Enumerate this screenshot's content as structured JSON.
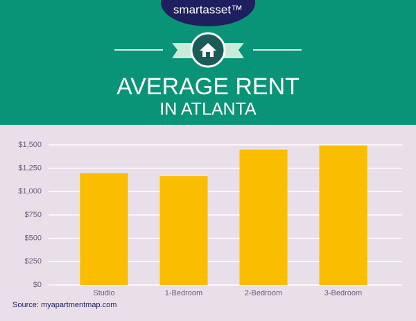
{
  "logo": "smartasset™",
  "chart_data": {
    "type": "bar",
    "title": "AVERAGE RENT",
    "subtitle": "IN ATLANTA",
    "categories": [
      "Studio",
      "1-Bedroom",
      "2-Bedroom",
      "3-Bedroom"
    ],
    "values": [
      1195,
      1165,
      1450,
      1495
    ],
    "color": "#fbbd00",
    "ylim": [
      0,
      1500
    ],
    "yticks": [
      {
        "value": 0,
        "label": "$0"
      },
      {
        "value": 250,
        "label": "$250"
      },
      {
        "value": 500,
        "label": "$500"
      },
      {
        "value": 750,
        "label": "$750"
      },
      {
        "value": 1000,
        "label": "$1,000"
      },
      {
        "value": 1250,
        "label": "$1,250"
      },
      {
        "value": 1500,
        "label": "$1,500"
      }
    ],
    "grid": true,
    "source": "Source: myapartmentmap.com"
  }
}
